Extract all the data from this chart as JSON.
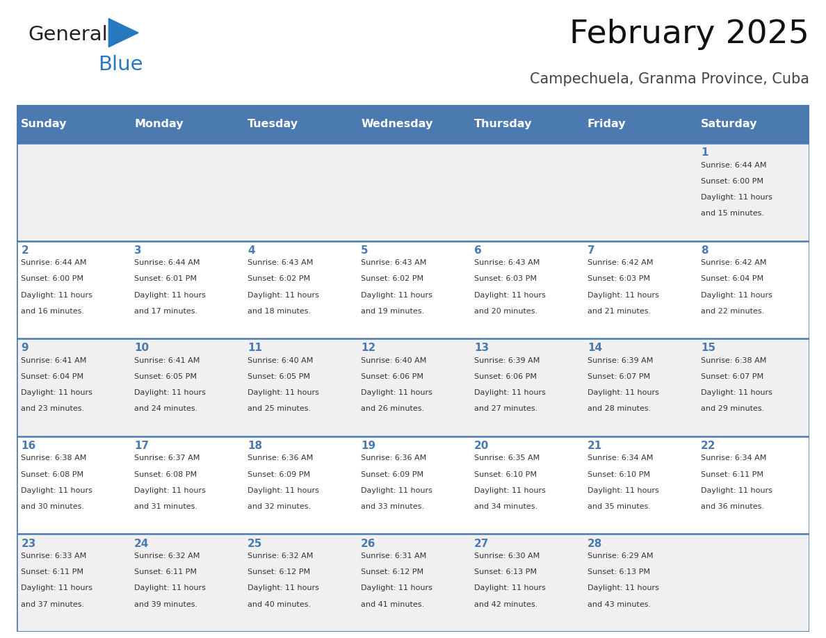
{
  "title": "February 2025",
  "subtitle": "Campechuela, Granma Province, Cuba",
  "days_of_week": [
    "Sunday",
    "Monday",
    "Tuesday",
    "Wednesday",
    "Thursday",
    "Friday",
    "Saturday"
  ],
  "header_bg": "#4a7aaf",
  "header_text": "#ffffff",
  "row_bg_odd": "#f0f0f0",
  "row_bg_even": "#ffffff",
  "separator_color": "#4a7aaf",
  "text_color": "#333333",
  "day_num_color": "#4a7aaf",
  "calendar_data": [
    [
      null,
      null,
      null,
      null,
      null,
      null,
      {
        "day": 1,
        "sunrise": "6:44 AM",
        "sunset": "6:00 PM",
        "daylight": "11 hours\nand 15 minutes."
      }
    ],
    [
      {
        "day": 2,
        "sunrise": "6:44 AM",
        "sunset": "6:00 PM",
        "daylight": "11 hours\nand 16 minutes."
      },
      {
        "day": 3,
        "sunrise": "6:44 AM",
        "sunset": "6:01 PM",
        "daylight": "11 hours\nand 17 minutes."
      },
      {
        "day": 4,
        "sunrise": "6:43 AM",
        "sunset": "6:02 PM",
        "daylight": "11 hours\nand 18 minutes."
      },
      {
        "day": 5,
        "sunrise": "6:43 AM",
        "sunset": "6:02 PM",
        "daylight": "11 hours\nand 19 minutes."
      },
      {
        "day": 6,
        "sunrise": "6:43 AM",
        "sunset": "6:03 PM",
        "daylight": "11 hours\nand 20 minutes."
      },
      {
        "day": 7,
        "sunrise": "6:42 AM",
        "sunset": "6:03 PM",
        "daylight": "11 hours\nand 21 minutes."
      },
      {
        "day": 8,
        "sunrise": "6:42 AM",
        "sunset": "6:04 PM",
        "daylight": "11 hours\nand 22 minutes."
      }
    ],
    [
      {
        "day": 9,
        "sunrise": "6:41 AM",
        "sunset": "6:04 PM",
        "daylight": "11 hours\nand 23 minutes."
      },
      {
        "day": 10,
        "sunrise": "6:41 AM",
        "sunset": "6:05 PM",
        "daylight": "11 hours\nand 24 minutes."
      },
      {
        "day": 11,
        "sunrise": "6:40 AM",
        "sunset": "6:05 PM",
        "daylight": "11 hours\nand 25 minutes."
      },
      {
        "day": 12,
        "sunrise": "6:40 AM",
        "sunset": "6:06 PM",
        "daylight": "11 hours\nand 26 minutes."
      },
      {
        "day": 13,
        "sunrise": "6:39 AM",
        "sunset": "6:06 PM",
        "daylight": "11 hours\nand 27 minutes."
      },
      {
        "day": 14,
        "sunrise": "6:39 AM",
        "sunset": "6:07 PM",
        "daylight": "11 hours\nand 28 minutes."
      },
      {
        "day": 15,
        "sunrise": "6:38 AM",
        "sunset": "6:07 PM",
        "daylight": "11 hours\nand 29 minutes."
      }
    ],
    [
      {
        "day": 16,
        "sunrise": "6:38 AM",
        "sunset": "6:08 PM",
        "daylight": "11 hours\nand 30 minutes."
      },
      {
        "day": 17,
        "sunrise": "6:37 AM",
        "sunset": "6:08 PM",
        "daylight": "11 hours\nand 31 minutes."
      },
      {
        "day": 18,
        "sunrise": "6:36 AM",
        "sunset": "6:09 PM",
        "daylight": "11 hours\nand 32 minutes."
      },
      {
        "day": 19,
        "sunrise": "6:36 AM",
        "sunset": "6:09 PM",
        "daylight": "11 hours\nand 33 minutes."
      },
      {
        "day": 20,
        "sunrise": "6:35 AM",
        "sunset": "6:10 PM",
        "daylight": "11 hours\nand 34 minutes."
      },
      {
        "day": 21,
        "sunrise": "6:34 AM",
        "sunset": "6:10 PM",
        "daylight": "11 hours\nand 35 minutes."
      },
      {
        "day": 22,
        "sunrise": "6:34 AM",
        "sunset": "6:11 PM",
        "daylight": "11 hours\nand 36 minutes."
      }
    ],
    [
      {
        "day": 23,
        "sunrise": "6:33 AM",
        "sunset": "6:11 PM",
        "daylight": "11 hours\nand 37 minutes."
      },
      {
        "day": 24,
        "sunrise": "6:32 AM",
        "sunset": "6:11 PM",
        "daylight": "11 hours\nand 39 minutes."
      },
      {
        "day": 25,
        "sunrise": "6:32 AM",
        "sunset": "6:12 PM",
        "daylight": "11 hours\nand 40 minutes."
      },
      {
        "day": 26,
        "sunrise": "6:31 AM",
        "sunset": "6:12 PM",
        "daylight": "11 hours\nand 41 minutes."
      },
      {
        "day": 27,
        "sunrise": "6:30 AM",
        "sunset": "6:13 PM",
        "daylight": "11 hours\nand 42 minutes."
      },
      {
        "day": 28,
        "sunrise": "6:29 AM",
        "sunset": "6:13 PM",
        "daylight": "11 hours\nand 43 minutes."
      },
      null
    ]
  ],
  "figsize": [
    11.88,
    9.18
  ],
  "dpi": 100
}
